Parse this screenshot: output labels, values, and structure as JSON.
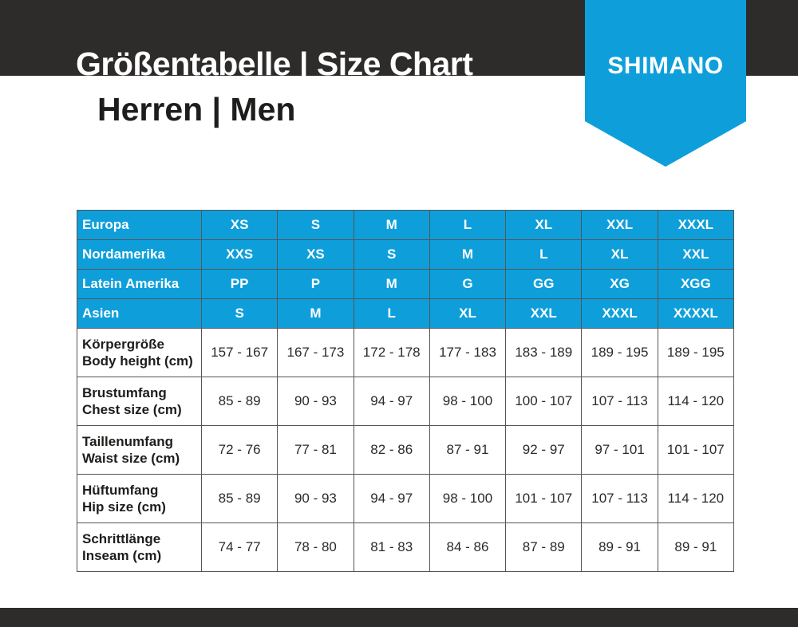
{
  "header": {
    "title": "Größentabelle | Size Chart",
    "subtitle": "Herren | Men",
    "logo_text": "SHIMANO"
  },
  "colors": {
    "brand_blue": "#0e9fdb",
    "dark_band": "#2d2c2a"
  },
  "table": {
    "size_rows": [
      {
        "label": "Europa",
        "values": [
          "XS",
          "S",
          "M",
          "L",
          "XL",
          "XXL",
          "XXXL"
        ]
      },
      {
        "label": "Nordamerika",
        "values": [
          "XXS",
          "XS",
          "S",
          "M",
          "L",
          "XL",
          "XXL"
        ]
      },
      {
        "label": "Latein Amerika",
        "values": [
          "PP",
          "P",
          "M",
          "G",
          "GG",
          "XG",
          "XGG"
        ]
      },
      {
        "label": "Asien",
        "values": [
          "S",
          "M",
          "L",
          "XL",
          "XXL",
          "XXXL",
          "XXXXL"
        ]
      }
    ],
    "measure_rows": [
      {
        "label_de": "Körpergröße",
        "label_en": "Body height (cm)",
        "values": [
          "157 - 167",
          "167 - 173",
          "172 - 178",
          "177 - 183",
          "183 - 189",
          "189 - 195",
          "189 - 195"
        ]
      },
      {
        "label_de": "Brustumfang",
        "label_en": "Chest size (cm)",
        "values": [
          "85 - 89",
          "90 - 93",
          "94 - 97",
          "98 - 100",
          "100 - 107",
          "107 - 113",
          "114 - 120"
        ]
      },
      {
        "label_de": "Taillenumfang",
        "label_en": "Waist size (cm)",
        "values": [
          "72 - 76",
          "77 - 81",
          "82 - 86",
          "87 - 91",
          "92 - 97",
          "97 - 101",
          "101 - 107"
        ]
      },
      {
        "label_de": "Hüftumfang",
        "label_en": "Hip size (cm)",
        "values": [
          "85 - 89",
          "90 - 93",
          "94 - 97",
          "98 - 100",
          "101 - 107",
          "107 - 113",
          "114 - 120"
        ]
      },
      {
        "label_de": "Schrittlänge",
        "label_en": "Inseam (cm)",
        "values": [
          "74 - 77",
          "78 - 80",
          "81 - 83",
          "84 - 86",
          "87 - 89",
          "89 - 91",
          "89 - 91"
        ]
      }
    ]
  }
}
